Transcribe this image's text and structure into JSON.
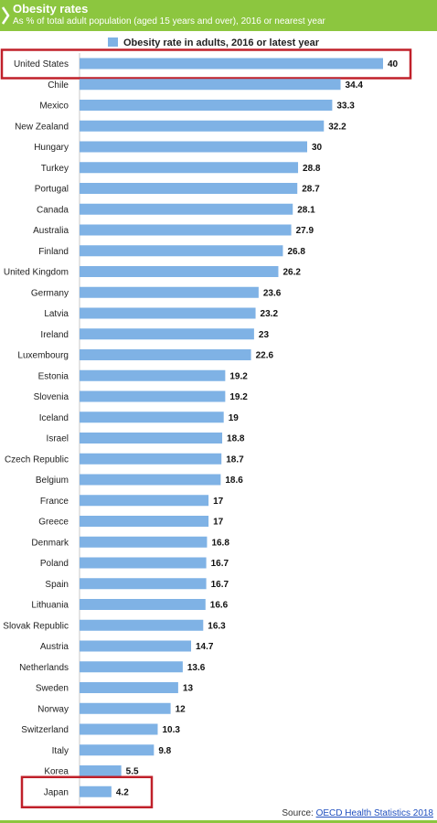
{
  "header": {
    "title": "Obesity rates",
    "subtitle": "As % of total adult population (aged 15 years and over), 2016 or nearest year"
  },
  "chart_data": {
    "type": "bar",
    "orientation": "horizontal",
    "title": "Obesity rates",
    "subtitle": "As % of total adult population (aged 15 years and over), 2016 or nearest year",
    "legend_position": "top",
    "xlim": [
      0,
      40
    ],
    "grid": false,
    "categories": [
      "United States",
      "Chile",
      "Mexico",
      "New Zealand",
      "Hungary",
      "Turkey",
      "Portugal",
      "Canada",
      "Australia",
      "Finland",
      "United Kingdom",
      "Germany",
      "Latvia",
      "Ireland",
      "Luxembourg",
      "Estonia",
      "Slovenia",
      "Iceland",
      "Israel",
      "Czech Republic",
      "Belgium",
      "France",
      "Greece",
      "Denmark",
      "Poland",
      "Spain",
      "Lithuania",
      "Slovak Republic",
      "Austria",
      "Netherlands",
      "Sweden",
      "Norway",
      "Switzerland",
      "Italy",
      "Korea",
      "Japan"
    ],
    "series": [
      {
        "name": "Obesity rate in adults, 2016 or latest year",
        "color": "#7fb2e5",
        "values": [
          40,
          34.4,
          33.3,
          32.2,
          30,
          28.8,
          28.7,
          28.1,
          27.9,
          26.8,
          26.2,
          23.6,
          23.2,
          23,
          22.6,
          19.2,
          19.2,
          19,
          18.8,
          18.7,
          18.6,
          17,
          17,
          16.8,
          16.7,
          16.7,
          16.6,
          16.3,
          14.7,
          13.6,
          13,
          12,
          10.3,
          9.8,
          5.5,
          4.2
        ]
      }
    ],
    "highlighted": [
      "United States",
      "Japan"
    ],
    "highlight_color": "#c0202a"
  },
  "source": {
    "prefix": "Source: ",
    "link": "OECD Health Statistics 2018"
  },
  "colors": {
    "header": "#8cc63f",
    "bar": "#7fb2e5",
    "highlight": "#c0202a"
  }
}
